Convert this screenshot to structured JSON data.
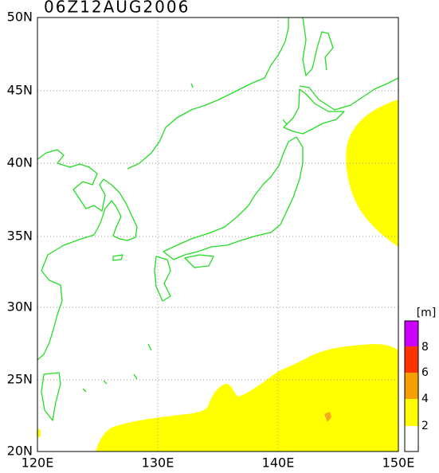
{
  "title": "06Z12AUG2006",
  "axes": {
    "lat_labels": [
      "50N",
      "45N",
      "40N",
      "35N",
      "30N",
      "25N",
      "20N"
    ],
    "lon_labels": [
      "120E",
      "130E",
      "140E",
      "150E"
    ]
  },
  "colorbar": {
    "unit": "[m]",
    "labels": [
      "8",
      "6",
      "4",
      "2"
    ]
  }
}
